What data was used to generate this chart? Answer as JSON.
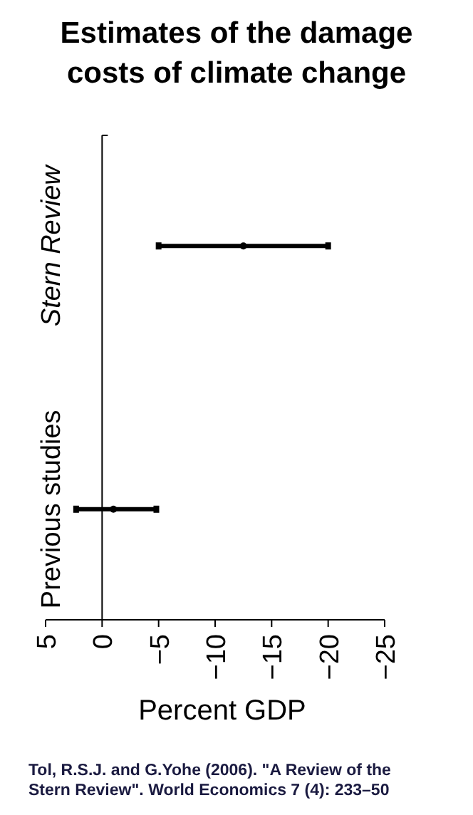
{
  "chart_data": {
    "type": "scatter",
    "orientation": "horizontal",
    "title": "Estimates of the damage costs of climate change",
    "xlabel": "Percent GDP",
    "categories": [
      "Stern Review",
      "Previous studies"
    ],
    "values": [
      -12.5,
      -1
    ],
    "errors": [
      [
        -20,
        -5
      ],
      [
        -4.8,
        2.3
      ]
    ],
    "color": "#000000",
    "xlim": [
      5,
      -25
    ],
    "xticks": [
      {
        "value": 5,
        "label": "5"
      },
      {
        "value": 0,
        "label": "0"
      },
      {
        "value": -5,
        "label": "−5"
      },
      {
        "value": -10,
        "label": "−10"
      },
      {
        "value": -15,
        "label": "−15"
      },
      {
        "value": -20,
        "label": "−20"
      },
      {
        "value": -25,
        "label": "−25"
      }
    ],
    "grid": false,
    "annotations": [
      "Tol, R.S.J. and G.Yohe (2006). \"A Review of the Stern Review\". World Economics 7 (4): 233–50"
    ]
  }
}
